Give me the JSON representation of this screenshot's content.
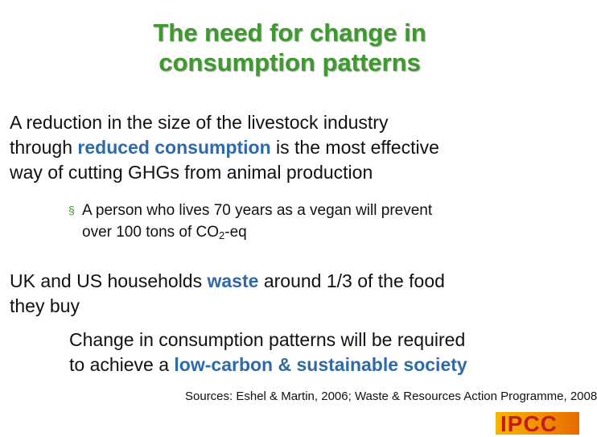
{
  "title": {
    "line1": "The need for change in",
    "line2": "consumption patterns"
  },
  "paragraph1": {
    "line1": "A reduction in the size of the livestock industry",
    "line2_before": "through ",
    "line2_highlight": "reduced consumption",
    "line2_after": " is the most effective",
    "line3": "way of cutting GHGs from animal production"
  },
  "bullet": {
    "marker": "§",
    "line1": "A person who lives 70 years as a vegan will prevent",
    "line2_before": "over 100 tons of CO",
    "line2_sub": "2",
    "line2_after": "-eq"
  },
  "paragraph2": {
    "line1_before": "UK and US households ",
    "line1_highlight": "waste",
    "line1_after": " around 1/3 of the food",
    "line2": "they buy"
  },
  "paragraph3": {
    "line1": "Change in consumption patterns will be required",
    "line2_before": "to achieve a ",
    "line2_highlight": "low-carbon & sustainable society"
  },
  "sources": "Sources: Eshel & Martin, 2006; Waste & Resources Action Programme, 2008",
  "logo": {
    "text": "IPCC",
    "color": "#c41a1a"
  },
  "colors": {
    "title": "#3d9b2e",
    "highlight": "#2f6aa8",
    "bullet_marker": "#3d9b2e"
  }
}
